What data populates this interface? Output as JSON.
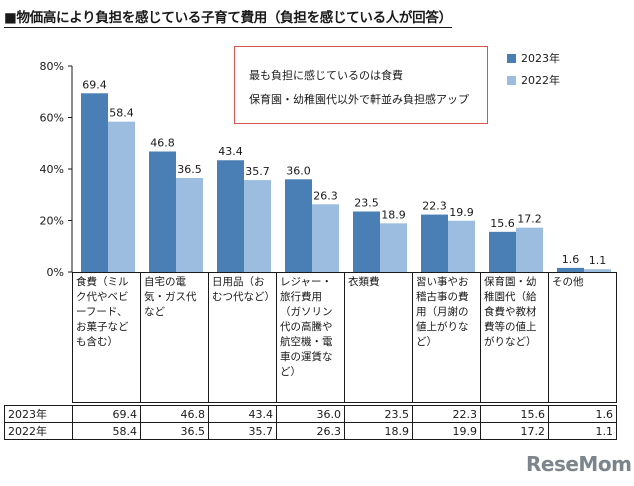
{
  "title": "■物価高により負担を感じている子育て費用（負担を感じている人が回答）",
  "note": {
    "line1": "最も負担に感じているのは食費",
    "line2": "保育園・幼稚園代以外で軒並み負担感アップ"
  },
  "logo": "ReseMom",
  "colors": {
    "series2023": "#4a7fb5",
    "series2022": "#9dbde0",
    "axis": "#1a1a1a",
    "note_border": "#d9534f"
  },
  "chart_data": {
    "type": "bar",
    "title": "物価高により負担を感じている子育て費用（負担を感じている人が回答）",
    "categories": [
      "食費（ミルク代やベビーフード、お菓子なども含む）",
      "自宅の電気・ガス代など",
      "日用品（おむつ代など）",
      "レジャー・旅行費用（ガソリン代の高騰や航空機・電車の運賃など）",
      "衣類費",
      "習い事やお稽古事の費用（月謝の値上がりなど）",
      "保育園・幼稚園代（給食費や教材費等の値上がりなど）",
      "その他"
    ],
    "series": [
      {
        "name": "2023年",
        "values": [
          69.4,
          46.8,
          43.4,
          36.0,
          23.5,
          22.3,
          15.6,
          1.6
        ]
      },
      {
        "name": "2022年",
        "values": [
          58.4,
          36.5,
          35.7,
          26.3,
          18.9,
          19.9,
          17.2,
          1.1
        ]
      }
    ],
    "yticks": [
      "0%",
      "20%",
      "40%",
      "60%",
      "80%"
    ],
    "ylim": [
      0,
      80
    ],
    "legend_position": "top-right",
    "grid": false,
    "table": {
      "rows": [
        {
          "label": "2023年",
          "values": [
            "69.4",
            "46.8",
            "43.4",
            "36.0",
            "23.5",
            "22.3",
            "15.6",
            "1.6"
          ]
        },
        {
          "label": "2022年",
          "values": [
            "58.4",
            "36.5",
            "35.7",
            "26.3",
            "18.9",
            "19.9",
            "17.2",
            "1.1"
          ]
        }
      ]
    }
  }
}
